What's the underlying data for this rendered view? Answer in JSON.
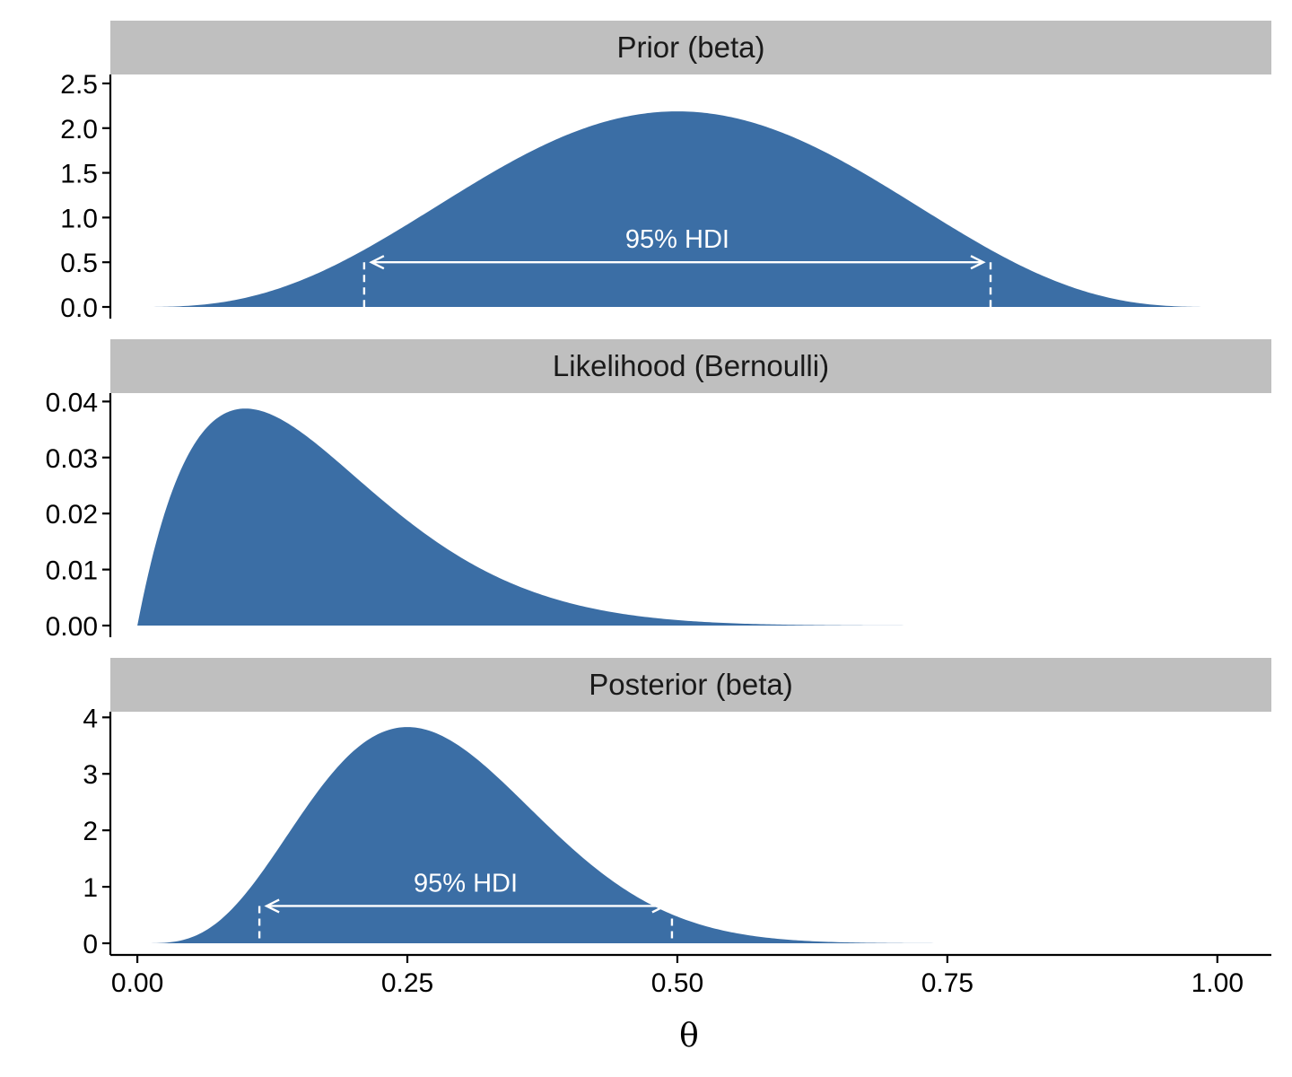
{
  "chart_data": {
    "type": "area",
    "xlabel": "θ",
    "x_ticks": [
      "0.00",
      "0.25",
      "0.50",
      "0.75",
      "1.00"
    ],
    "x_tick_values": [
      0,
      0.25,
      0.5,
      0.75,
      1.0
    ],
    "xlim": [
      -0.025,
      1.05
    ],
    "fill_color": "#3b6ea5",
    "strip_color": "#bfbfbf",
    "panels": [
      {
        "title": "Prior (beta)",
        "ylim": [
          0,
          2.6
        ],
        "y_ticks": [
          "0.0",
          "0.5",
          "1.0",
          "1.5",
          "2.0",
          "2.5"
        ],
        "y_tick_values": [
          0,
          0.5,
          1.0,
          1.5,
          2.0,
          2.5
        ],
        "distribution": {
          "kind": "beta",
          "a": 4,
          "b": 4,
          "scale": 1
        },
        "hdi": {
          "label": "95% HDI",
          "lower": 0.21,
          "upper": 0.79,
          "arrow_y": 0.5
        }
      },
      {
        "title": "Likelihood (Bernoulli)",
        "ylim": [
          0,
          0.0415
        ],
        "y_ticks": [
          "0.00",
          "0.01",
          "0.02",
          "0.03",
          "0.04"
        ],
        "y_tick_values": [
          0,
          0.01,
          0.02,
          0.03,
          0.04
        ],
        "distribution": {
          "kind": "bernoulli",
          "successes": 1,
          "trials": 10
        }
      },
      {
        "title": "Posterior (beta)",
        "ylim": [
          0,
          4.1
        ],
        "y_ticks": [
          "0",
          "1",
          "2",
          "3",
          "4"
        ],
        "y_tick_values": [
          0,
          1,
          2,
          3,
          4
        ],
        "distribution": {
          "kind": "beta",
          "a": 5,
          "b": 13,
          "scale": 1
        },
        "hdi": {
          "label": "95% HDI",
          "lower": 0.113,
          "upper": 0.495,
          "arrow_y": 0.66
        }
      }
    ]
  }
}
